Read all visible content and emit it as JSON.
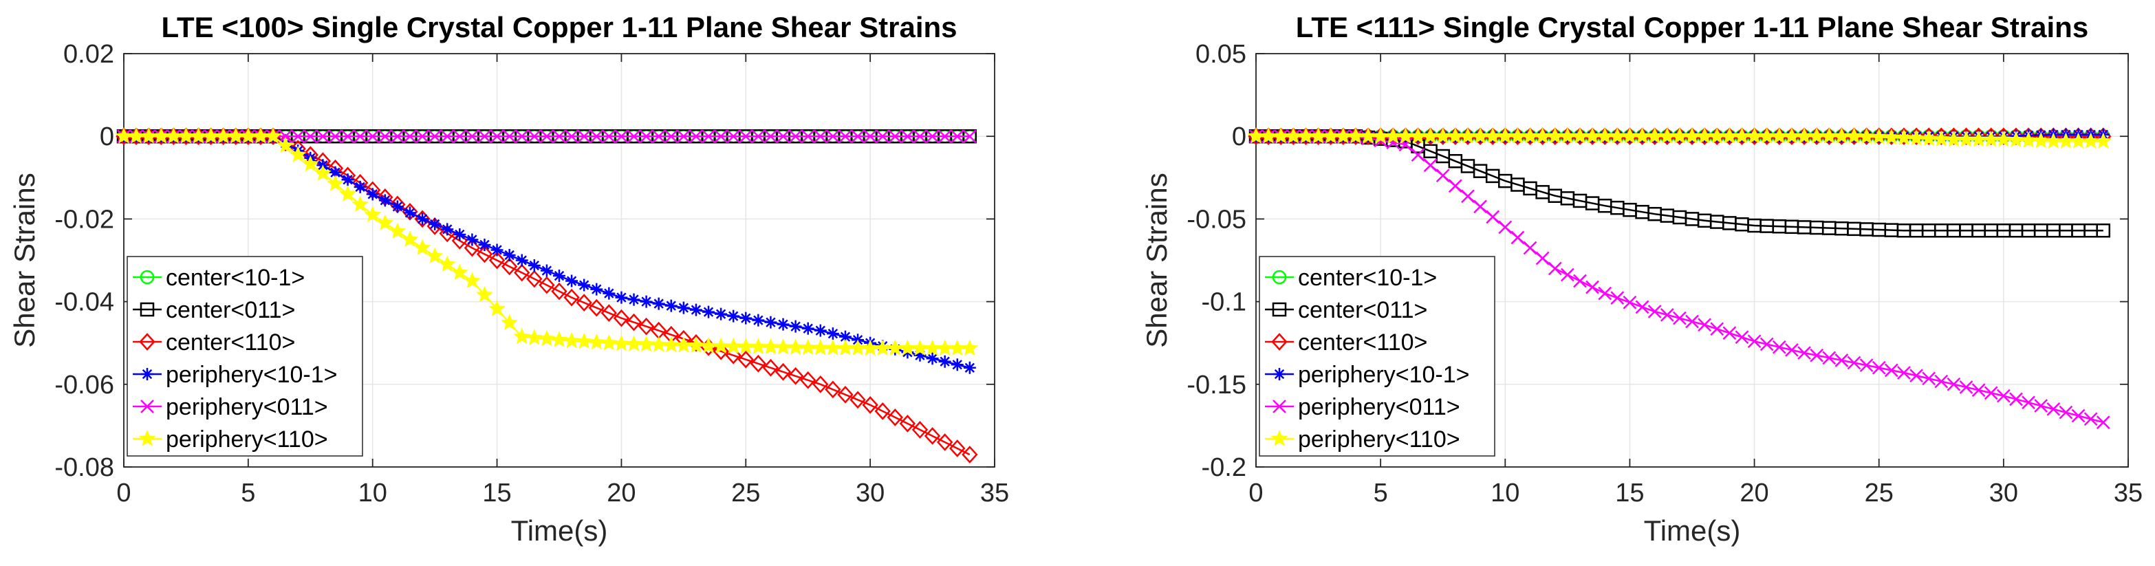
{
  "chart_data": [
    {
      "type": "line",
      "title": "LTE <100> Single Crystal Copper 1-11 Plane Shear Strains",
      "xlabel": "Time(s)",
      "ylabel": "Shear Strains",
      "xlim": [
        0,
        35
      ],
      "ylim": [
        -0.08,
        0.02
      ],
      "xticks": [
        0,
        5,
        10,
        15,
        20,
        25,
        30,
        35
      ],
      "xtick_labels": [
        "0",
        "5",
        "10",
        "15",
        "20",
        "25",
        "30",
        "35"
      ],
      "yticks": [
        -0.08,
        -0.06,
        -0.04,
        -0.02,
        0,
        0.02
      ],
      "ytick_labels": [
        "-0.08",
        "-0.06",
        "-0.04",
        "-0.02",
        "0",
        "0.02"
      ],
      "grid": true,
      "legend_position": "bottom-left",
      "x": [
        0,
        2,
        4,
        6,
        8,
        10,
        12,
        14,
        16,
        18,
        20,
        22,
        24,
        26,
        28,
        30,
        32,
        34
      ],
      "series": [
        {
          "name": "center<10-1>",
          "color": "#00ff00",
          "marker": "circle",
          "values": [
            0,
            0,
            0,
            0,
            0,
            0,
            0,
            0,
            0,
            0,
            0,
            0,
            0,
            0,
            0,
            0,
            0,
            0
          ]
        },
        {
          "name": "center<011>",
          "color": "#000000",
          "marker": "square",
          "values": [
            0,
            0,
            0,
            0,
            0,
            0,
            0,
            0,
            0,
            0,
            0,
            0,
            0,
            0,
            0,
            0,
            0,
            0
          ]
        },
        {
          "name": "center<110>",
          "color": "#ff0000",
          "marker": "diamond",
          "values": [
            0,
            0,
            0,
            0,
            -0.006,
            -0.013,
            -0.02,
            -0.027,
            -0.033,
            -0.039,
            -0.044,
            -0.048,
            -0.052,
            -0.056,
            -0.06,
            -0.065,
            -0.071,
            -0.077
          ]
        },
        {
          "name": "periphery<10-1>",
          "color": "#0000ff",
          "marker": "asterisk",
          "values": [
            0,
            0,
            0,
            0,
            -0.007,
            -0.014,
            -0.02,
            -0.025,
            -0.03,
            -0.035,
            -0.039,
            -0.041,
            -0.043,
            -0.045,
            -0.047,
            -0.05,
            -0.053,
            -0.056
          ]
        },
        {
          "name": "periphery<011>",
          "color": "#ff00ff",
          "marker": "x",
          "values": [
            0,
            0,
            0,
            0,
            0,
            0,
            0,
            0,
            0,
            0,
            0,
            0,
            0,
            0,
            0,
            0,
            0,
            0
          ]
        },
        {
          "name": "periphery<110>",
          "color": "#ffff00",
          "marker": "star",
          "values": [
            0,
            0,
            0,
            0,
            -0.009,
            -0.019,
            -0.027,
            -0.035,
            -0.0485,
            -0.0495,
            -0.0502,
            -0.0505,
            -0.0508,
            -0.051,
            -0.0512,
            -0.0513,
            -0.0513,
            -0.0513
          ]
        }
      ]
    },
    {
      "type": "line",
      "title": "LTE <111> Single Crystal Copper 1-11 Plane Shear Strains",
      "xlabel": "Time(s)",
      "ylabel": "Shear Strains",
      "xlim": [
        0,
        35
      ],
      "ylim": [
        -0.2,
        0.05
      ],
      "xticks": [
        0,
        5,
        10,
        15,
        20,
        25,
        30,
        35
      ],
      "xtick_labels": [
        "0",
        "5",
        "10",
        "15",
        "20",
        "25",
        "30",
        "35"
      ],
      "yticks": [
        -0.2,
        -0.15,
        -0.1,
        -0.05,
        0,
        0.05
      ],
      "ytick_labels": [
        "-0.2",
        "-0.15",
        "-0.1",
        "-0.05",
        "0",
        "0.05"
      ],
      "grid": true,
      "legend_position": "bottom-left",
      "x": [
        0,
        2,
        4,
        6,
        8,
        10,
        12,
        14,
        16,
        18,
        20,
        22,
        24,
        26,
        28,
        30,
        32,
        34
      ],
      "series": [
        {
          "name": "center<10-1>",
          "color": "#00ff00",
          "marker": "circle",
          "values": [
            0,
            0,
            0,
            0,
            0,
            0,
            0,
            0,
            0,
            0,
            0,
            0,
            0,
            0,
            0,
            0,
            0,
            0
          ]
        },
        {
          "name": "center<011>",
          "color": "#000000",
          "marker": "square",
          "values": [
            0,
            0,
            0,
            -0.003,
            -0.015,
            -0.027,
            -0.036,
            -0.042,
            -0.047,
            -0.051,
            -0.054,
            -0.055,
            -0.056,
            -0.057,
            -0.057,
            -0.057,
            -0.057,
            -0.057
          ]
        },
        {
          "name": "center<110>",
          "color": "#ff0000",
          "marker": "diamond",
          "values": [
            0,
            0,
            0,
            0,
            0,
            0,
            0,
            0,
            0,
            0,
            0,
            0,
            0,
            0,
            0,
            0,
            0,
            0
          ]
        },
        {
          "name": "periphery<10-1>",
          "color": "#0000ff",
          "marker": "asterisk",
          "values": [
            0,
            0,
            0,
            0,
            0,
            0,
            0,
            0,
            0,
            0,
            0,
            0,
            0,
            0,
            0,
            0,
            0.001,
            0.001
          ]
        },
        {
          "name": "periphery<011>",
          "color": "#ff00ff",
          "marker": "x",
          "values": [
            0,
            0,
            0,
            -0.005,
            -0.03,
            -0.055,
            -0.08,
            -0.095,
            -0.106,
            -0.114,
            -0.124,
            -0.131,
            -0.137,
            -0.143,
            -0.15,
            -0.157,
            -0.165,
            -0.173
          ]
        },
        {
          "name": "periphery<110>",
          "color": "#ffff00",
          "marker": "star",
          "values": [
            0,
            0,
            0,
            0,
            0,
            0,
            0,
            0,
            0,
            0,
            0,
            0,
            0,
            -0.001,
            -0.002,
            -0.002,
            -0.003,
            -0.003
          ]
        }
      ]
    }
  ]
}
